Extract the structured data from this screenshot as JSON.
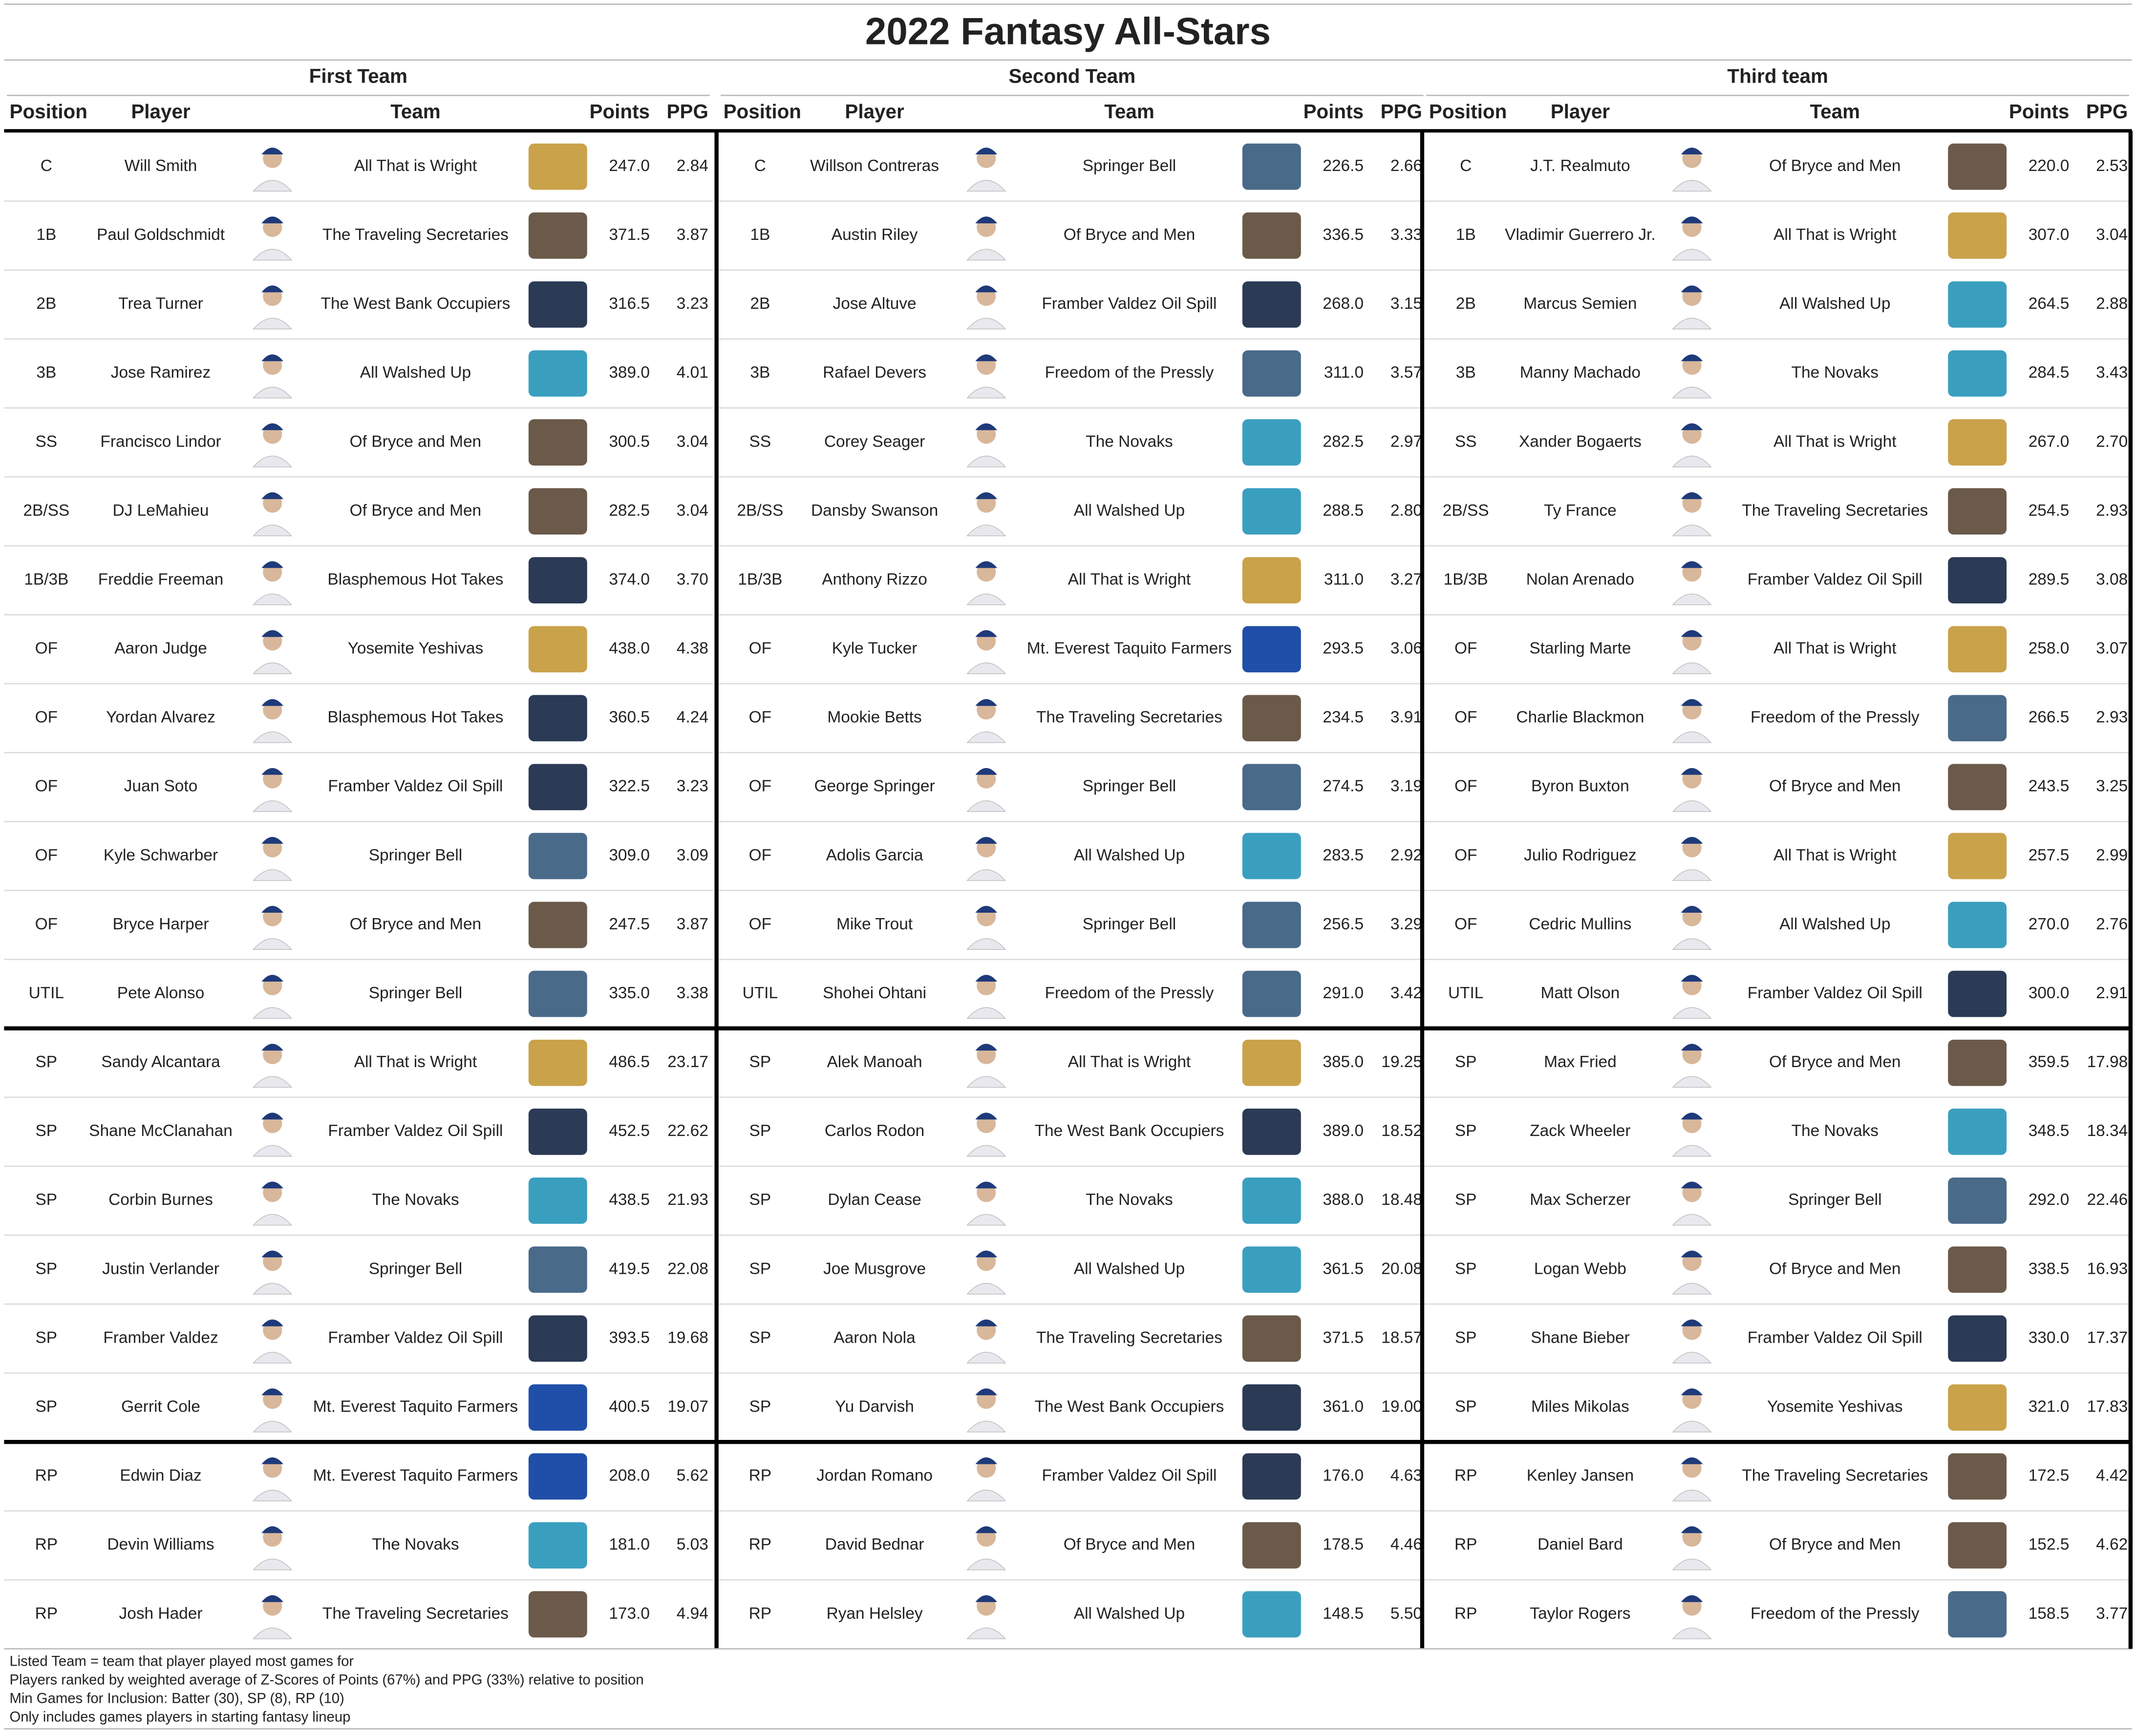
{
  "title": "2022 Fantasy All-Stars",
  "groups": [
    {
      "title": "First Team",
      "columns": [
        "Position",
        "Player",
        "Team",
        "Points",
        "PPG"
      ],
      "rows": [
        [
          "C",
          "Will Smith",
          "All That is Wright",
          "247.0",
          "2.84"
        ],
        [
          "1B",
          "Paul Goldschmidt",
          "The Traveling Secretaries",
          "371.5",
          "3.87"
        ],
        [
          "2B",
          "Trea Turner",
          "The West Bank Occupiers",
          "316.5",
          "3.23"
        ],
        [
          "3B",
          "Jose Ramirez",
          "All Walshed Up",
          "389.0",
          "4.01"
        ],
        [
          "SS",
          "Francisco Lindor",
          "Of Bryce and Men",
          "300.5",
          "3.04"
        ],
        [
          "2B/SS",
          "DJ LeMahieu",
          "Of Bryce and Men",
          "282.5",
          "3.04"
        ],
        [
          "1B/3B",
          "Freddie Freeman",
          "Blasphemous Hot Takes",
          "374.0",
          "3.70"
        ],
        [
          "OF",
          "Aaron Judge",
          "Yosemite Yeshivas",
          "438.0",
          "4.38"
        ],
        [
          "OF",
          "Yordan Alvarez",
          "Blasphemous Hot Takes",
          "360.5",
          "4.24"
        ],
        [
          "OF",
          "Juan Soto",
          "Framber Valdez Oil Spill",
          "322.5",
          "3.23"
        ],
        [
          "OF",
          "Kyle Schwarber",
          "Springer Bell",
          "309.0",
          "3.09"
        ],
        [
          "OF",
          "Bryce Harper",
          "Of Bryce and Men",
          "247.5",
          "3.87"
        ],
        [
          "UTIL",
          "Pete Alonso",
          "Springer Bell",
          "335.0",
          "3.38"
        ],
        [
          "SP",
          "Sandy Alcantara",
          "All That is Wright",
          "486.5",
          "23.17"
        ],
        [
          "SP",
          "Shane McClanahan",
          "Framber Valdez Oil Spill",
          "452.5",
          "22.62"
        ],
        [
          "SP",
          "Corbin Burnes",
          "The Novaks",
          "438.5",
          "21.93"
        ],
        [
          "SP",
          "Justin Verlander",
          "Springer Bell",
          "419.5",
          "22.08"
        ],
        [
          "SP",
          "Framber Valdez",
          "Framber Valdez Oil Spill",
          "393.5",
          "19.68"
        ],
        [
          "SP",
          "Gerrit Cole",
          "Mt. Everest Taquito Farmers",
          "400.5",
          "19.07"
        ],
        [
          "RP",
          "Edwin Diaz",
          "Mt. Everest Taquito Farmers",
          "208.0",
          "5.62"
        ],
        [
          "RP",
          "Devin Williams",
          "The Novaks",
          "181.0",
          "5.03"
        ],
        [
          "RP",
          "Josh Hader",
          "The Traveling Secretaries",
          "173.0",
          "4.94"
        ]
      ]
    },
    {
      "title": "Second Team",
      "columns": [
        "Position",
        "Player",
        "Team",
        "Points",
        "PPG"
      ],
      "rows": [
        [
          "C",
          "Willson Contreras",
          "Springer Bell",
          "226.5",
          "2.66"
        ],
        [
          "1B",
          "Austin Riley",
          "Of Bryce and Men",
          "336.5",
          "3.33"
        ],
        [
          "2B",
          "Jose Altuve",
          "Framber Valdez Oil Spill",
          "268.0",
          "3.15"
        ],
        [
          "3B",
          "Rafael Devers",
          "Freedom of the Pressly",
          "311.0",
          "3.57"
        ],
        [
          "SS",
          "Corey Seager",
          "The Novaks",
          "282.5",
          "2.97"
        ],
        [
          "2B/SS",
          "Dansby Swanson",
          "All Walshed Up",
          "288.5",
          "2.80"
        ],
        [
          "1B/3B",
          "Anthony Rizzo",
          "All That is Wright",
          "311.0",
          "3.27"
        ],
        [
          "OF",
          "Kyle Tucker",
          "Mt. Everest Taquito Farmers",
          "293.5",
          "3.06"
        ],
        [
          "OF",
          "Mookie Betts",
          "The Traveling Secretaries",
          "234.5",
          "3.91"
        ],
        [
          "OF",
          "George Springer",
          "Springer Bell",
          "274.5",
          "3.19"
        ],
        [
          "OF",
          "Adolis Garcia",
          "All Walshed Up",
          "283.5",
          "2.92"
        ],
        [
          "OF",
          "Mike Trout",
          "Springer Bell",
          "256.5",
          "3.29"
        ],
        [
          "UTIL",
          "Shohei Ohtani",
          "Freedom of the Pressly",
          "291.0",
          "3.42"
        ],
        [
          "SP",
          "Alek Manoah",
          "All That is Wright",
          "385.0",
          "19.25"
        ],
        [
          "SP",
          "Carlos Rodon",
          "The West Bank Occupiers",
          "389.0",
          "18.52"
        ],
        [
          "SP",
          "Dylan Cease",
          "The Novaks",
          "388.0",
          "18.48"
        ],
        [
          "SP",
          "Joe Musgrove",
          "All Walshed Up",
          "361.5",
          "20.08"
        ],
        [
          "SP",
          "Aaron Nola",
          "The Traveling Secretaries",
          "371.5",
          "18.57"
        ],
        [
          "SP",
          "Yu Darvish",
          "The West Bank Occupiers",
          "361.0",
          "19.00"
        ],
        [
          "RP",
          "Jordan Romano",
          "Framber Valdez Oil Spill",
          "176.0",
          "4.63"
        ],
        [
          "RP",
          "David Bednar",
          "Of Bryce and Men",
          "178.5",
          "4.46"
        ],
        [
          "RP",
          "Ryan Helsley",
          "All Walshed Up",
          "148.5",
          "5.50"
        ]
      ]
    },
    {
      "title": "Third team",
      "columns": [
        "Position",
        "Player",
        "Team",
        "Points",
        "PPG"
      ],
      "rows": [
        [
          "C",
          "J.T. Realmuto",
          "Of Bryce and Men",
          "220.0",
          "2.53"
        ],
        [
          "1B",
          "Vladimir Guerrero Jr.",
          "All That is Wright",
          "307.0",
          "3.04"
        ],
        [
          "2B",
          "Marcus Semien",
          "All Walshed Up",
          "264.5",
          "2.88"
        ],
        [
          "3B",
          "Manny Machado",
          "The Novaks",
          "284.5",
          "3.43"
        ],
        [
          "SS",
          "Xander Bogaerts",
          "All That is Wright",
          "267.0",
          "2.70"
        ],
        [
          "2B/SS",
          "Ty France",
          "The Traveling Secretaries",
          "254.5",
          "2.93"
        ],
        [
          "1B/3B",
          "Nolan Arenado",
          "Framber Valdez Oil Spill",
          "289.5",
          "3.08"
        ],
        [
          "OF",
          "Starling Marte",
          "All That is Wright",
          "258.0",
          "3.07"
        ],
        [
          "OF",
          "Charlie Blackmon",
          "Freedom of the Pressly",
          "266.5",
          "2.93"
        ],
        [
          "OF",
          "Byron Buxton",
          "Of Bryce and Men",
          "243.5",
          "3.25"
        ],
        [
          "OF",
          "Julio Rodriguez",
          "All That is Wright",
          "257.5",
          "2.99"
        ],
        [
          "OF",
          "Cedric Mullins",
          "All Walshed Up",
          "270.0",
          "2.76"
        ],
        [
          "UTIL",
          "Matt Olson",
          "Framber Valdez Oil Spill",
          "300.0",
          "2.91"
        ],
        [
          "SP",
          "Max Fried",
          "Of Bryce and Men",
          "359.5",
          "17.98"
        ],
        [
          "SP",
          "Zack Wheeler",
          "The Novaks",
          "348.5",
          "18.34"
        ],
        [
          "SP",
          "Max Scherzer",
          "Springer Bell",
          "292.0",
          "22.46"
        ],
        [
          "SP",
          "Logan Webb",
          "Of Bryce and Men",
          "338.5",
          "16.93"
        ],
        [
          "SP",
          "Shane Bieber",
          "Framber Valdez Oil Spill",
          "330.0",
          "17.37"
        ],
        [
          "SP",
          "Miles Mikolas",
          "Yosemite Yeshivas",
          "321.0",
          "17.83"
        ],
        [
          "RP",
          "Kenley Jansen",
          "The Traveling Secretaries",
          "172.5",
          "4.42"
        ],
        [
          "RP",
          "Daniel Bard",
          "Of Bryce and Men",
          "152.5",
          "4.62"
        ],
        [
          "RP",
          "Taylor Rogers",
          "Freedom of the Pressly",
          "158.5",
          "3.77"
        ]
      ]
    }
  ],
  "notes": [
    "Listed Team = team that player played most games for",
    "Players ranked by weighted average of Z-Scores of Points (67%) and PPG (33%) relative to position",
    "Min Games for Inclusion: Batter (30), SP (8), RP (10)",
    "Only includes games players in starting fantasy lineup"
  ]
}
